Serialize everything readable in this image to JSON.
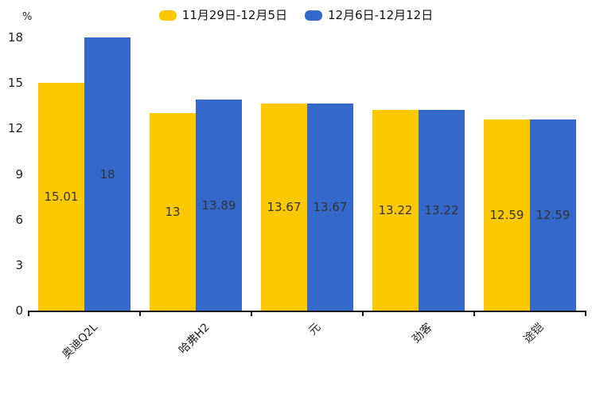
{
  "chart_data": {
    "type": "bar",
    "title": "",
    "ylabel": "%",
    "xlabel": "",
    "categories": [
      "奥迪Q2L",
      "哈弗H2",
      "元",
      "劲客",
      "途铠"
    ],
    "series": [
      {
        "name": "11月29日-12月5日",
        "color": "#FCC800",
        "values": [
          15.01,
          13,
          13.67,
          13.22,
          12.59
        ]
      },
      {
        "name": "12月6日-12月12日",
        "color": "#3568CB",
        "values": [
          18,
          13.89,
          13.67,
          13.22,
          12.59
        ]
      }
    ],
    "ylim": [
      0,
      18
    ],
    "yticks": [
      0,
      3,
      6,
      9,
      12,
      15,
      18
    ],
    "grid": false,
    "legend_position": "top",
    "value_labels": "inside-center"
  }
}
